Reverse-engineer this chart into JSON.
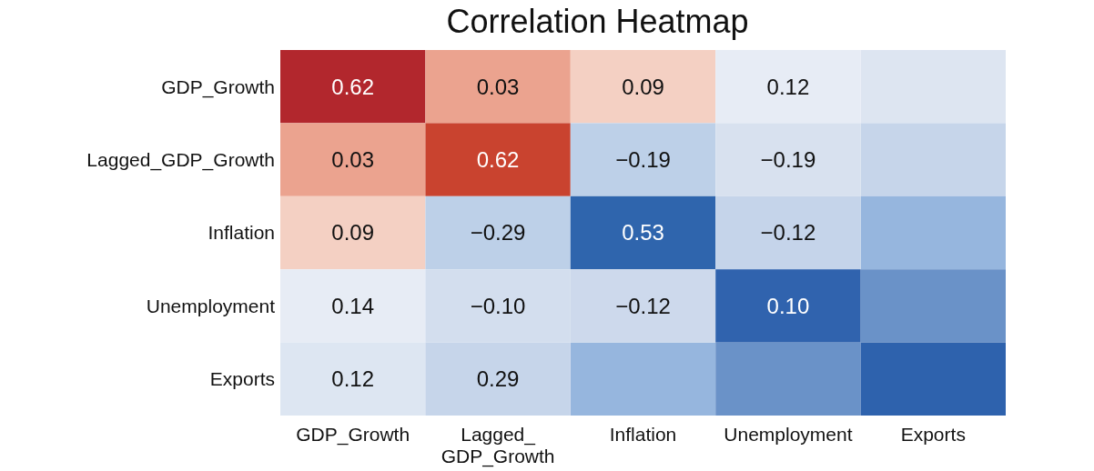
{
  "chart_data": {
    "type": "heatmap",
    "title": "Correlation Heatmap",
    "data_labels": true,
    "categories": [
      "GDP_Growth",
      "Lagged_GDP_Growth",
      "Inflation",
      "Unemployment",
      "Exports"
    ],
    "y_categories": [
      "GDP_Growth",
      "Lagged_GDP_Growth",
      "Inflation",
      "Unemployment",
      "Exports"
    ],
    "cells": [
      [
        0.62,
        0.03,
        0.09,
        0.12,
        null
      ],
      [
        0.03,
        0.62,
        -0.19,
        -0.19,
        null
      ],
      [
        0.09,
        -0.29,
        0.53,
        -0.12,
        null
      ],
      [
        0.14,
        -0.1,
        -0.12,
        0.1,
        null
      ],
      [
        0.12,
        0.29,
        null,
        null,
        null
      ]
    ],
    "cell_labels": [
      [
        "0.62",
        "0.03",
        "0.09",
        "0.12",
        null
      ],
      [
        "0.03",
        "0.62",
        "−0.19",
        "−0.19",
        null
      ],
      [
        "0.09",
        "−0.29",
        "0.53",
        "−0.12",
        null
      ],
      [
        "0.14",
        "−0.10",
        "−0.12",
        "0.10",
        null
      ],
      [
        "0.12",
        "0.29",
        null,
        null,
        null
      ]
    ],
    "colors": [
      [
        "#b2272d",
        "#eba38f",
        "#f4d0c3",
        "#e7ecf5",
        "#dde5f1"
      ],
      [
        "#eba38f",
        "#c9432f",
        "#bdd0e8",
        "#d8e1ef",
        "#c6d5ea"
      ],
      [
        "#f4d0c3",
        "#bdd0e8",
        "#2f65ad",
        "#c5d4ea",
        "#96b6de"
      ],
      [
        "#e7ecf5",
        "#d3deee",
        "#cdd9ec",
        "#3063ae",
        "#6a92c8"
      ],
      [
        "#dde6f2",
        "#c6d5ea",
        "#96b6de",
        "#6a92c8",
        "#2e62ad"
      ]
    ]
  }
}
